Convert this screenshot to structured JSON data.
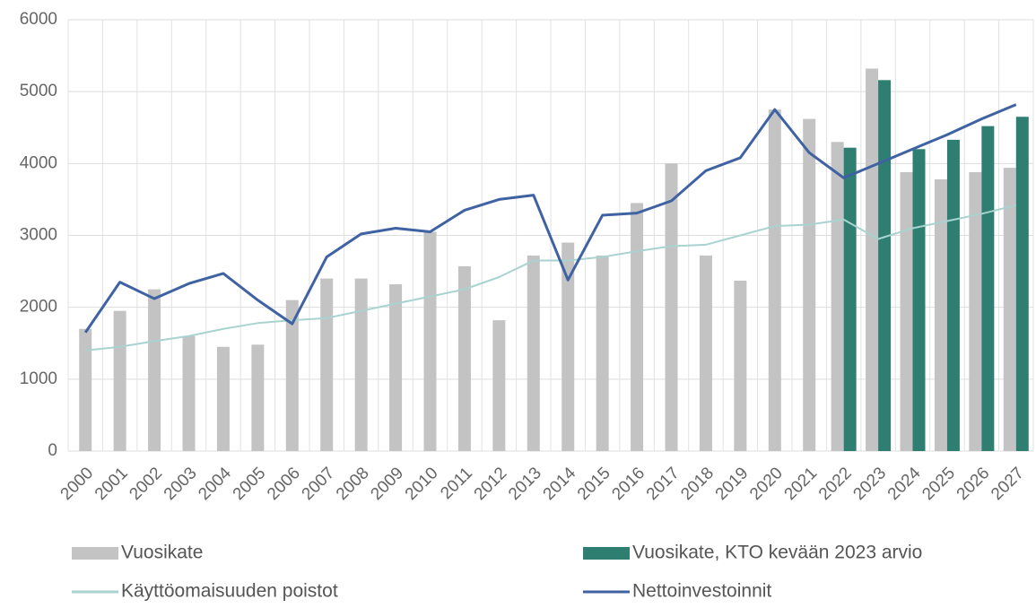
{
  "chart_data": {
    "type": "bar",
    "categories": [
      "2000",
      "2001",
      "2002",
      "2003",
      "2004",
      "2005",
      "2006",
      "2007",
      "2008",
      "2009",
      "2010",
      "2011",
      "2012",
      "2013",
      "2014",
      "2015",
      "2016",
      "2017",
      "2018",
      "2019",
      "2020",
      "2021",
      "2022",
      "2023",
      "2024",
      "2025",
      "2026",
      "2027"
    ],
    "series": [
      {
        "name": "Vuosikate",
        "type": "bar",
        "color": "#c3c3c3",
        "values": [
          1700,
          1950,
          2250,
          1600,
          1450,
          1480,
          2100,
          2400,
          2400,
          2320,
          3050,
          2570,
          1820,
          2720,
          2900,
          2720,
          3450,
          4000,
          2720,
          2370,
          4750,
          4620,
          4300,
          5320,
          3880,
          3780,
          3880,
          3940
        ]
      },
      {
        "name": "Vuosikate, KTO kevään 2023 arvio",
        "type": "bar",
        "color": "#2e7f72",
        "values": [
          null,
          null,
          null,
          null,
          null,
          null,
          null,
          null,
          null,
          null,
          null,
          null,
          null,
          null,
          null,
          null,
          null,
          null,
          null,
          null,
          null,
          null,
          4220,
          5160,
          4200,
          4330,
          4520,
          4650
        ]
      },
      {
        "name": "Käyttöomaisuuden poistot",
        "type": "line",
        "color": "#a9d3cf",
        "values": [
          1400,
          1450,
          1530,
          1600,
          1700,
          1780,
          1820,
          1850,
          1950,
          2050,
          2150,
          2250,
          2420,
          2650,
          2650,
          2700,
          2780,
          2850,
          2870,
          3000,
          3130,
          3150,
          3220,
          2950,
          3100,
          3200,
          3300,
          3420
        ]
      },
      {
        "name": "Nettoinvestoinnit",
        "type": "line",
        "color": "#3f62a3",
        "values": [
          1650,
          2350,
          2120,
          2330,
          2470,
          2100,
          1770,
          2700,
          3020,
          3100,
          3050,
          3350,
          3500,
          3560,
          2380,
          3280,
          3310,
          3480,
          3900,
          4080,
          4750,
          4150,
          3800,
          4000,
          4200,
          4400,
          4620,
          4820
        ]
      }
    ],
    "ylim": [
      0,
      6000
    ],
    "yticks": [
      0,
      1000,
      2000,
      3000,
      4000,
      5000,
      6000
    ],
    "grid": true
  }
}
